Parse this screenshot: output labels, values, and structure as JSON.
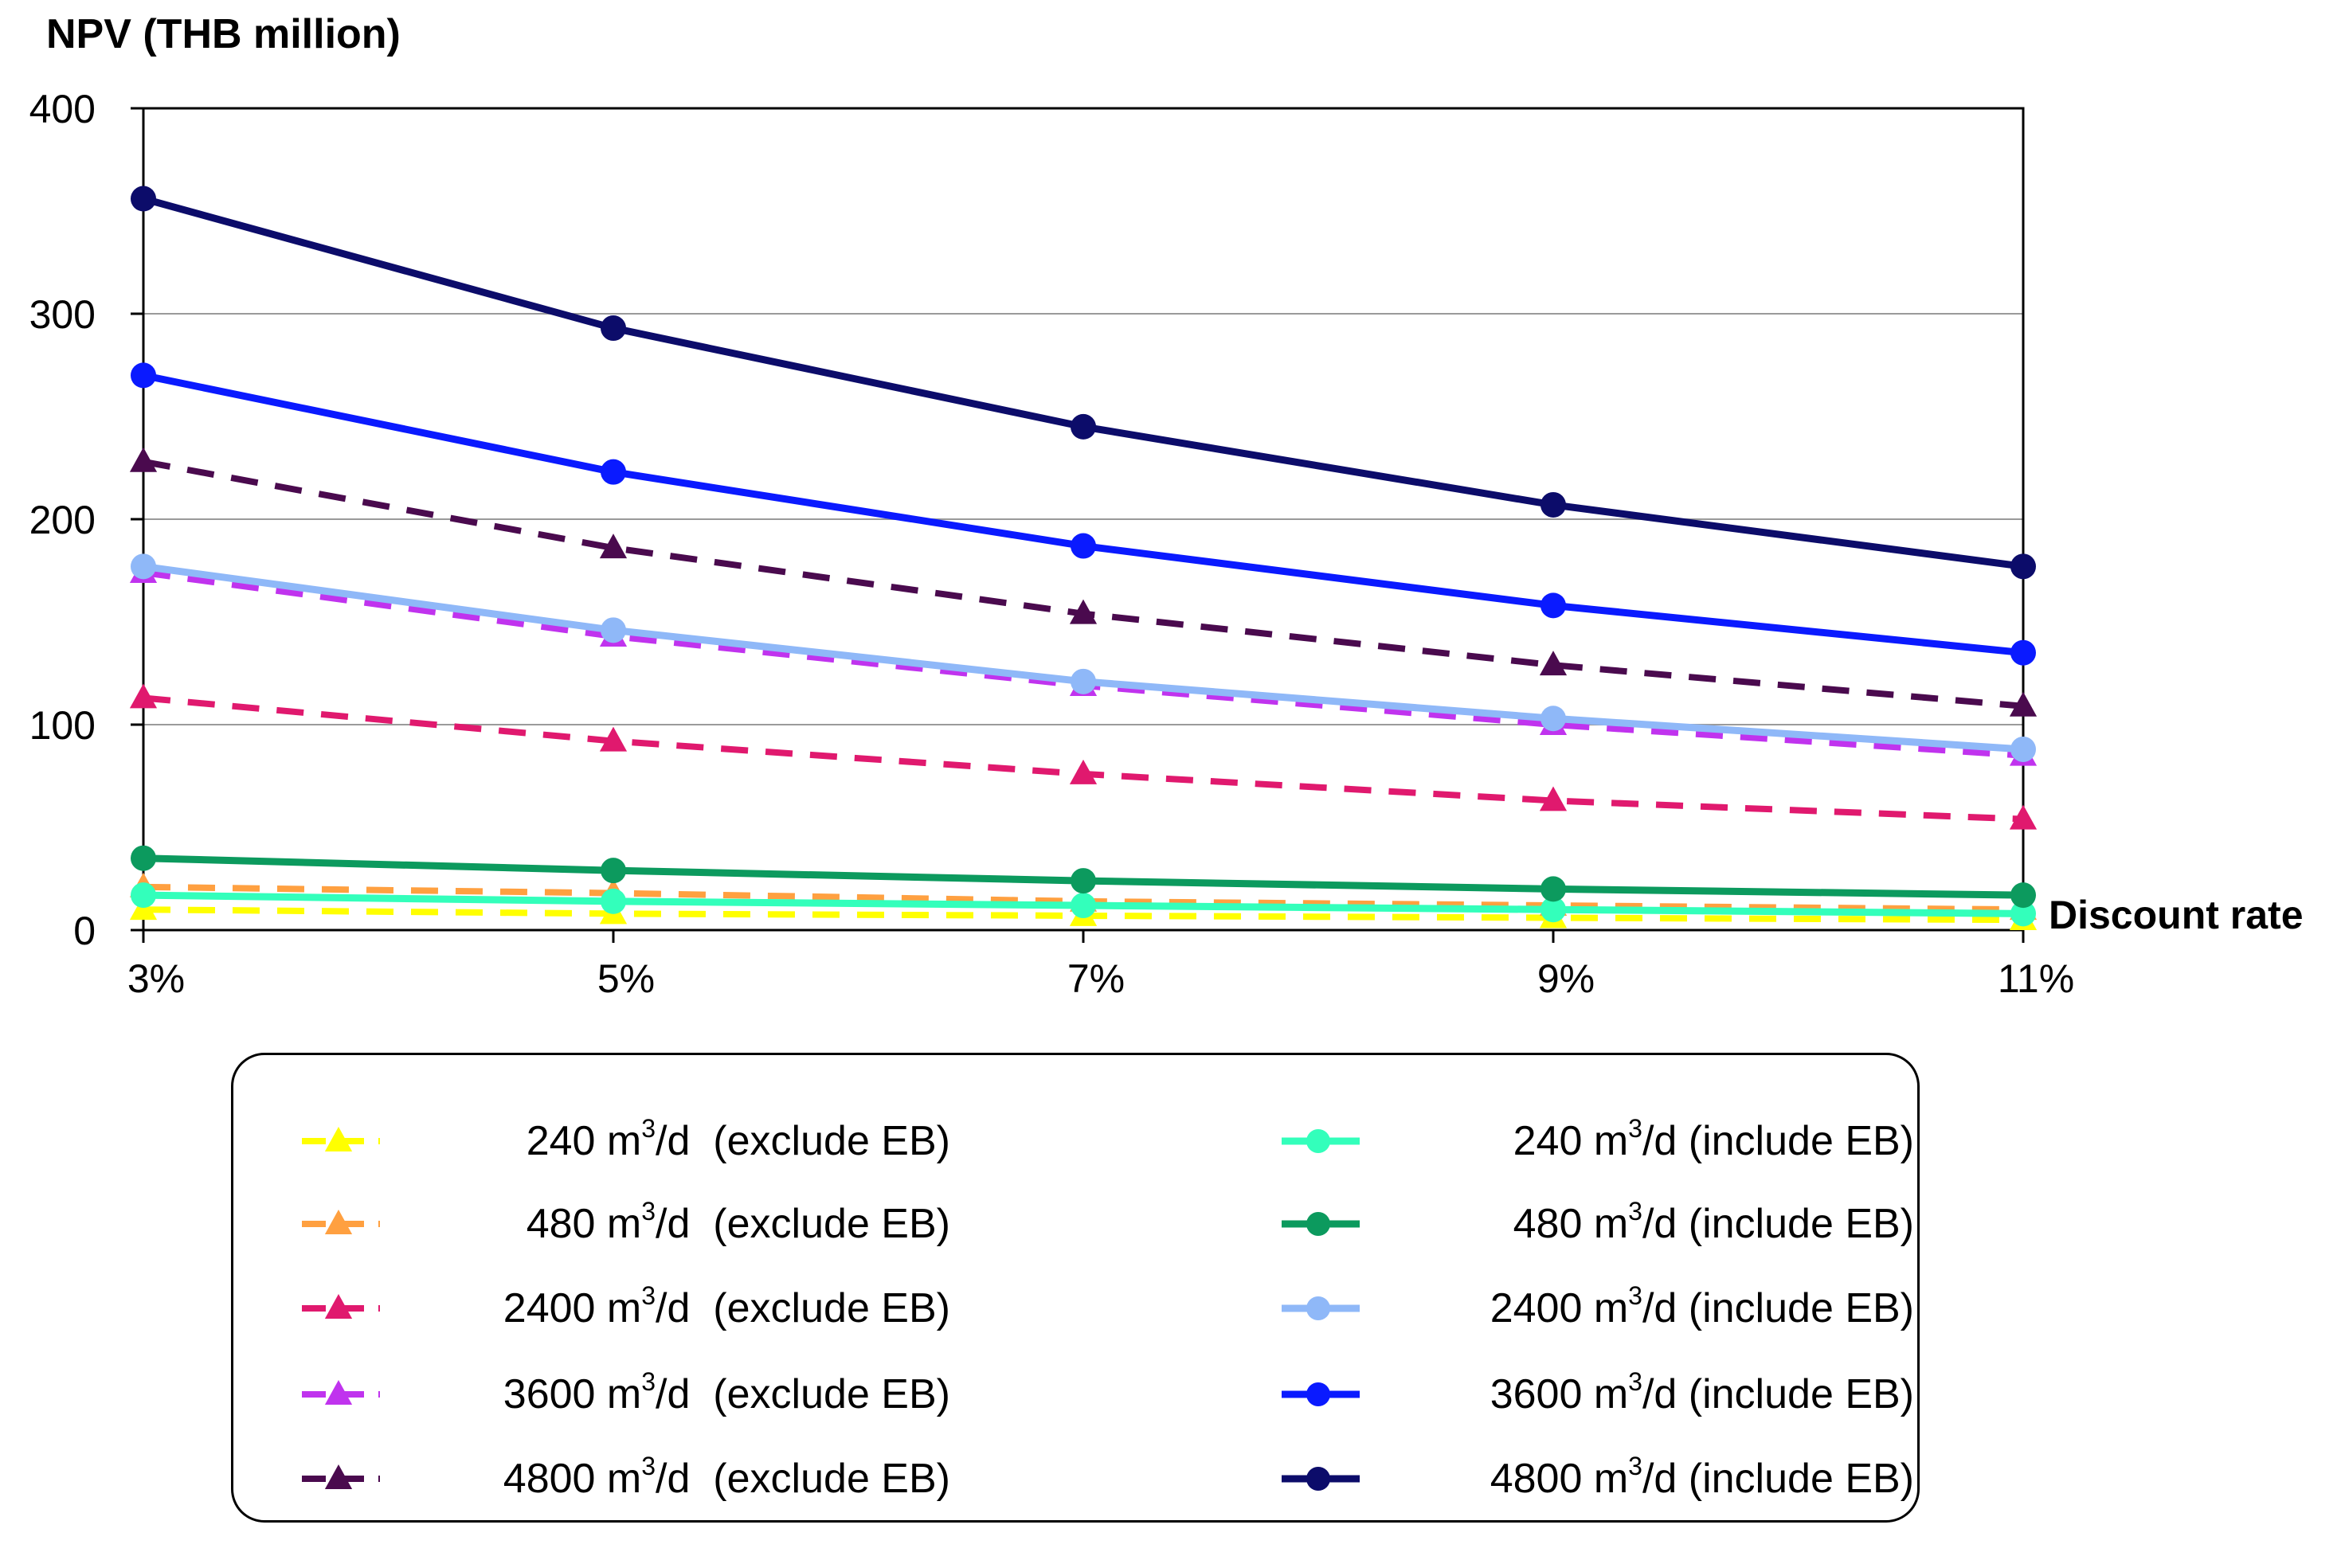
{
  "chart_data": {
    "type": "line",
    "title": "",
    "ylabel": "NPV (THB million)",
    "xlabel": "Discount rate",
    "categories": [
      "3%",
      "5%",
      "7%",
      "9%",
      "11%"
    ],
    "yticks": [
      "0",
      "100",
      "200",
      "300",
      "400"
    ],
    "ylim": [
      0,
      400
    ],
    "grid": true,
    "legend_position": "bottom",
    "series": [
      {
        "name": "240 m3/d  (exclude EB)",
        "size": "240",
        "suffix": "/d  (exclude EB)",
        "values": [
          10,
          8,
          7,
          6,
          5
        ],
        "color": "#ffff00",
        "dash": true,
        "marker": "triangle"
      },
      {
        "name": "480 m3/d  (exclude EB)",
        "size": "480",
        "suffix": "/d  (exclude EB)",
        "values": [
          21,
          18,
          14,
          12,
          10
        ],
        "color": "#ffa040",
        "dash": true,
        "marker": "triangle"
      },
      {
        "name": "2400 m3/d  (exclude EB)",
        "size": "2400",
        "suffix": "/d  (exclude EB)",
        "values": [
          113,
          92,
          76,
          63,
          54
        ],
        "color": "#e0196e",
        "dash": true,
        "marker": "triangle"
      },
      {
        "name": "3600 m3/d  (exclude EB)",
        "size": "3600",
        "suffix": "/d  (exclude EB)",
        "values": [
          174,
          143,
          119,
          100,
          85
        ],
        "color": "#c033ee",
        "dash": true,
        "marker": "triangle"
      },
      {
        "name": "4800 m3/d  (exclude EB)",
        "size": "4800",
        "suffix": "/d  (exclude EB)",
        "values": [
          228,
          186,
          154,
          129,
          109
        ],
        "color": "#4a0a4e",
        "dash": true,
        "marker": "triangle"
      },
      {
        "name": "240 m3/d (include EB)",
        "size": "240",
        "suffix": "/d (include EB)",
        "values": [
          17,
          14,
          12,
          10,
          8
        ],
        "color": "#33ffbb",
        "dash": false,
        "marker": "circle"
      },
      {
        "name": "480 m3/d (include EB)",
        "size": "480",
        "suffix": "/d (include EB)",
        "values": [
          35,
          29,
          24,
          20,
          17
        ],
        "color": "#0c9a5e",
        "dash": false,
        "marker": "circle"
      },
      {
        "name": "2400 m3/d (include EB)",
        "size": "2400",
        "suffix": "/d (include EB)",
        "values": [
          177,
          146,
          121,
          103,
          88
        ],
        "color": "#8fb8f8",
        "dash": false,
        "marker": "circle"
      },
      {
        "name": "3600 m3/d (include EB)",
        "size": "3600",
        "suffix": "/d (include EB)",
        "values": [
          270,
          223,
          187,
          158,
          135
        ],
        "color": "#0a1aff",
        "dash": false,
        "marker": "circle"
      },
      {
        "name": "4800 m3/d (include EB)",
        "size": "4800",
        "suffix": "/d (include EB)",
        "values": [
          356,
          293,
          245,
          207,
          177
        ],
        "color": "#0c0c6a",
        "dash": false,
        "marker": "circle"
      }
    ],
    "legend": {
      "unit": "m",
      "unit_sup": "3"
    }
  }
}
